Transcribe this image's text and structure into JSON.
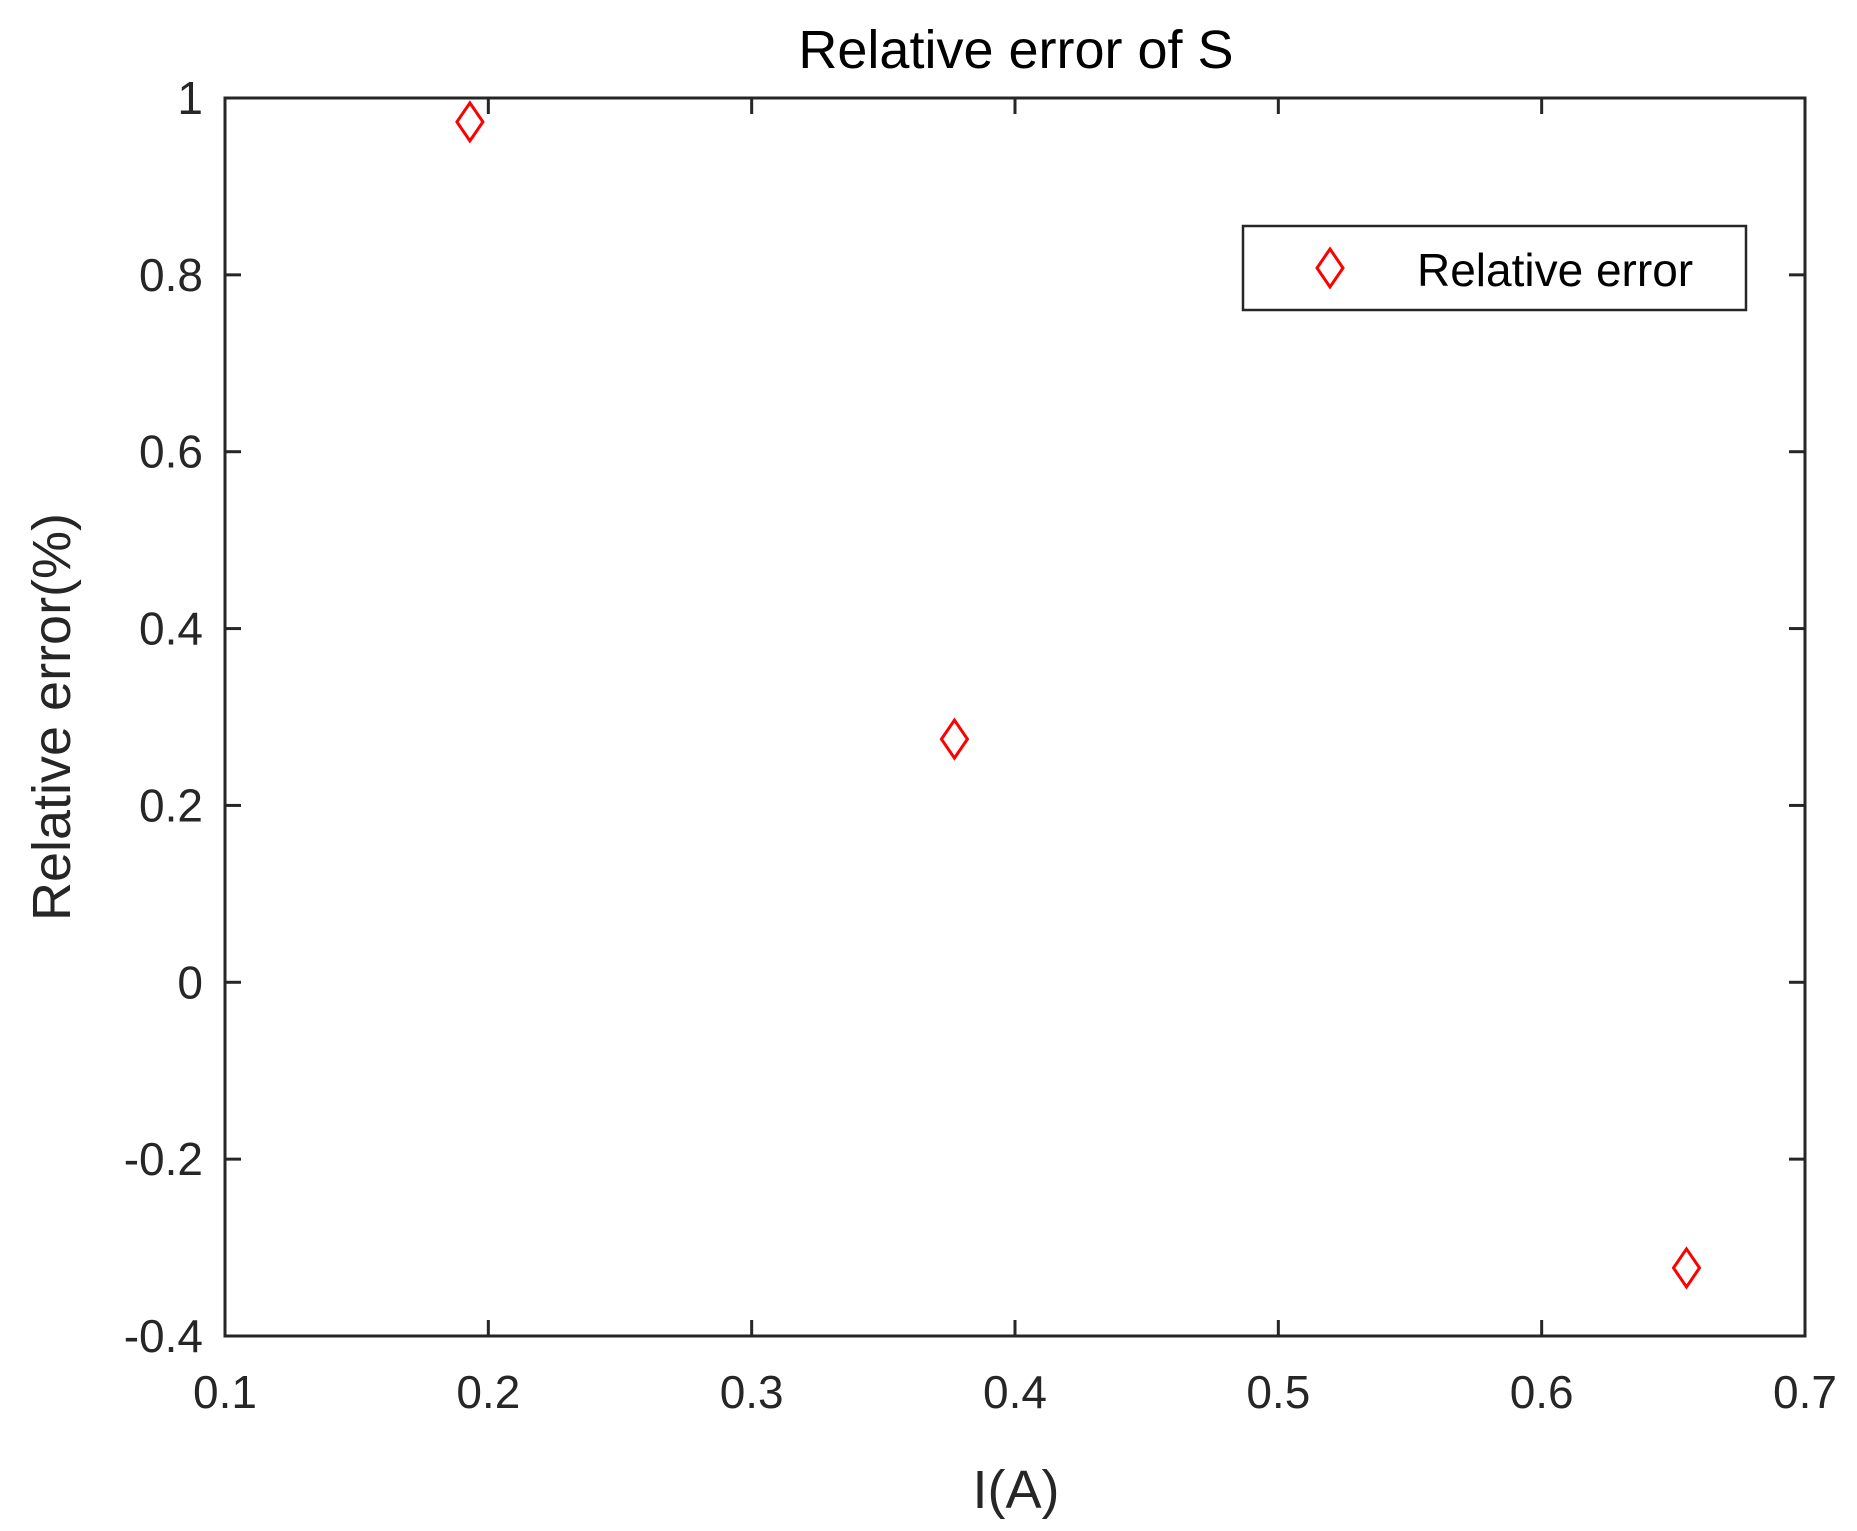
{
  "chart_data": {
    "type": "scatter",
    "title": "Relative error of S",
    "xlabel": "I(A)",
    "ylabel": "Relative error(%)",
    "xlim": [
      0.1,
      0.7
    ],
    "ylim": [
      -0.4,
      1
    ],
    "xticks": [
      0.1,
      0.2,
      0.3,
      0.4,
      0.5,
      0.6,
      0.7
    ],
    "xtick_labels": [
      "0.1",
      "0.2",
      "0.3",
      "0.4",
      "0.5",
      "0.6",
      "0.7"
    ],
    "yticks": [
      -0.4,
      -0.2,
      0,
      0.2,
      0.4,
      0.6,
      0.8,
      1
    ],
    "ytick_labels": [
      "-0.4",
      "-0.2",
      "0",
      "0.2",
      "0.4",
      "0.6",
      "0.8",
      "1"
    ],
    "grid": false,
    "legend_position": "top-right",
    "series": [
      {
        "name": "Relative error",
        "marker": "diamond-open",
        "color": "#ff0000",
        "x": [
          0.193,
          0.377,
          0.655
        ],
        "y": [
          0.973,
          0.275,
          -0.323
        ]
      }
    ]
  }
}
